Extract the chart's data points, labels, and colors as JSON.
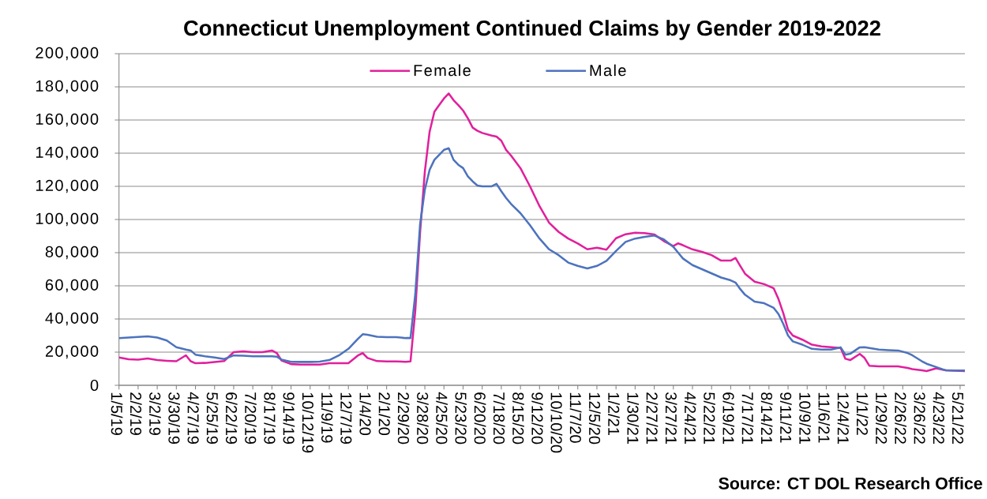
{
  "chart_data": {
    "type": "line",
    "title": "Connecticut Unemployment Continued Claims by Gender 2019-2022",
    "annotations": [
      "Source: CT DOL Research Office"
    ],
    "x": [
      "2019-01-05",
      "2019-01-19",
      "2019-02-02",
      "2019-02-16",
      "2019-03-02",
      "2019-03-16",
      "2019-03-30",
      "2019-04-13",
      "2019-04-20",
      "2019-04-27",
      "2019-05-11",
      "2019-05-25",
      "2019-06-08",
      "2019-06-22",
      "2019-07-06",
      "2019-07-20",
      "2019-08-03",
      "2019-08-17",
      "2019-08-24",
      "2019-08-31",
      "2019-09-14",
      "2019-09-28",
      "2019-10-12",
      "2019-10-26",
      "2019-11-09",
      "2019-11-23",
      "2019-12-07",
      "2019-12-21",
      "2019-12-28",
      "2020-01-04",
      "2020-01-18",
      "2020-02-01",
      "2020-02-15",
      "2020-02-29",
      "2020-03-07",
      "2020-03-14",
      "2020-03-21",
      "2020-03-28",
      "2020-04-04",
      "2020-04-11",
      "2020-04-18",
      "2020-04-25",
      "2020-05-02",
      "2020-05-09",
      "2020-05-16",
      "2020-05-23",
      "2020-05-30",
      "2020-06-06",
      "2020-06-13",
      "2020-06-20",
      "2020-07-04",
      "2020-07-11",
      "2020-07-18",
      "2020-07-25",
      "2020-08-01",
      "2020-08-15",
      "2020-08-29",
      "2020-09-12",
      "2020-09-26",
      "2020-10-10",
      "2020-10-24",
      "2020-11-07",
      "2020-11-21",
      "2020-12-05",
      "2020-12-19",
      "2021-01-02",
      "2021-01-16",
      "2021-01-30",
      "2021-02-13",
      "2021-02-27",
      "2021-03-13",
      "2021-03-27",
      "2021-04-03",
      "2021-04-10",
      "2021-04-24",
      "2021-05-08",
      "2021-05-22",
      "2021-06-05",
      "2021-06-19",
      "2021-06-26",
      "2021-07-03",
      "2021-07-10",
      "2021-07-24",
      "2021-08-07",
      "2021-08-21",
      "2021-08-28",
      "2021-09-04",
      "2021-09-11",
      "2021-09-18",
      "2021-10-02",
      "2021-10-16",
      "2021-10-30",
      "2021-11-13",
      "2021-11-27",
      "2021-12-04",
      "2021-12-11",
      "2021-12-25",
      "2022-01-01",
      "2022-01-08",
      "2022-01-22",
      "2022-02-05",
      "2022-02-19",
      "2022-03-05",
      "2022-03-12",
      "2022-03-26",
      "2022-04-02",
      "2022-04-16",
      "2022-04-30",
      "2022-05-14",
      "2022-05-28"
    ],
    "series": [
      {
        "name": "Female",
        "color": "#e0209c",
        "values": [
          16800,
          15700,
          15500,
          16200,
          15200,
          14800,
          14500,
          18100,
          14500,
          13300,
          13500,
          14000,
          14600,
          20000,
          20500,
          20000,
          20000,
          21000,
          19500,
          15000,
          12800,
          12500,
          12500,
          12500,
          13300,
          13300,
          13300,
          18000,
          19400,
          16500,
          14600,
          14400,
          14400,
          14200,
          14400,
          45000,
          92000,
          129000,
          153000,
          165000,
          169000,
          173000,
          176000,
          172000,
          169000,
          165700,
          161000,
          155400,
          153500,
          152200,
          150600,
          150000,
          147500,
          142000,
          138700,
          131000,
          120000,
          108000,
          98000,
          92500,
          88500,
          85500,
          82000,
          83000,
          81800,
          88700,
          91100,
          92000,
          91800,
          91000,
          87000,
          84000,
          85600,
          84500,
          82000,
          80500,
          78500,
          75200,
          75200,
          76800,
          72000,
          67300,
          62500,
          61000,
          58500,
          52000,
          43500,
          33500,
          30000,
          27500,
          24500,
          23500,
          23000,
          22500,
          16000,
          15200,
          18900,
          16500,
          11800,
          11400,
          11400,
          11400,
          10500,
          9800,
          9000,
          8600,
          10200,
          9000,
          8800,
          8600
        ]
      },
      {
        "name": "Male",
        "color": "#4d73be",
        "values": [
          28400,
          28800,
          29200,
          29500,
          28800,
          27000,
          23000,
          21500,
          21000,
          18500,
          17500,
          16800,
          15800,
          18000,
          17800,
          17500,
          17500,
          17500,
          17300,
          15500,
          14200,
          14100,
          14100,
          14300,
          15200,
          18000,
          22000,
          28000,
          30800,
          30500,
          29300,
          29000,
          29000,
          28500,
          28500,
          55000,
          97000,
          118000,
          130000,
          136000,
          139000,
          142000,
          143000,
          136000,
          133000,
          131000,
          126000,
          123000,
          120500,
          120000,
          120000,
          121500,
          117000,
          113000,
          109500,
          103800,
          96500,
          88500,
          82000,
          78500,
          74000,
          72000,
          70500,
          72000,
          75000,
          81000,
          86500,
          88500,
          89500,
          90300,
          88000,
          83500,
          80000,
          76500,
          72500,
          70000,
          67500,
          65000,
          63300,
          62000,
          58000,
          54600,
          50500,
          49500,
          46700,
          43000,
          37000,
          30000,
          26500,
          24500,
          22000,
          21500,
          21500,
          22900,
          18500,
          19000,
          22900,
          23000,
          22500,
          21500,
          21200,
          21000,
          19500,
          18100,
          14500,
          13000,
          11000,
          9000,
          8900,
          8900
        ]
      }
    ],
    "xlim": [
      "2019-01-05",
      "2022-05-28"
    ],
    "xticks": [
      {
        "value": "2019-01-05",
        "label": "1/5/19"
      },
      {
        "value": "2019-02-02",
        "label": "2/2/19"
      },
      {
        "value": "2019-03-02",
        "label": "3/2/19"
      },
      {
        "value": "2019-03-30",
        "label": "3/30/19"
      },
      {
        "value": "2019-04-27",
        "label": "4/27/19"
      },
      {
        "value": "2019-05-25",
        "label": "5/25/19"
      },
      {
        "value": "2019-06-22",
        "label": "6/22/19"
      },
      {
        "value": "2019-07-20",
        "label": "7/20/19"
      },
      {
        "value": "2019-08-17",
        "label": "8/17/19"
      },
      {
        "value": "2019-09-14",
        "label": "9/14/19"
      },
      {
        "value": "2019-10-12",
        "label": "10/12/19"
      },
      {
        "value": "2019-11-09",
        "label": "11/9/19"
      },
      {
        "value": "2019-12-07",
        "label": "12/7/19"
      },
      {
        "value": "2020-01-04",
        "label": "1/4/20"
      },
      {
        "value": "2020-02-01",
        "label": "2/1/20"
      },
      {
        "value": "2020-02-29",
        "label": "2/29/20"
      },
      {
        "value": "2020-03-28",
        "label": "3/28/20"
      },
      {
        "value": "2020-04-25",
        "label": "4/25/20"
      },
      {
        "value": "2020-05-23",
        "label": "5/23/20"
      },
      {
        "value": "2020-06-20",
        "label": "6/20/20"
      },
      {
        "value": "2020-07-18",
        "label": "7/18/20"
      },
      {
        "value": "2020-08-15",
        "label": "8/15/20"
      },
      {
        "value": "2020-09-12",
        "label": "9/12/20"
      },
      {
        "value": "2020-10-10",
        "label": "10/10/20"
      },
      {
        "value": "2020-11-07",
        "label": "11/7/20"
      },
      {
        "value": "2020-12-05",
        "label": "12/5/20"
      },
      {
        "value": "2021-01-02",
        "label": "1/2/21"
      },
      {
        "value": "2021-01-30",
        "label": "1/30/21"
      },
      {
        "value": "2021-02-27",
        "label": "2/27/21"
      },
      {
        "value": "2021-03-27",
        "label": "3/27/21"
      },
      {
        "value": "2021-04-24",
        "label": "4/24/21"
      },
      {
        "value": "2021-05-22",
        "label": "5/22/21"
      },
      {
        "value": "2021-06-19",
        "label": "6/19/21"
      },
      {
        "value": "2021-07-17",
        "label": "7/17/21"
      },
      {
        "value": "2021-08-14",
        "label": "8/14/21"
      },
      {
        "value": "2021-09-11",
        "label": "9/11/21"
      },
      {
        "value": "2021-10-09",
        "label": "10/9/21"
      },
      {
        "value": "2021-11-06",
        "label": "11/6/21"
      },
      {
        "value": "2021-12-04",
        "label": "12/4/21"
      },
      {
        "value": "2022-01-01",
        "label": "1/1/22"
      },
      {
        "value": "2022-01-29",
        "label": "1/29/22"
      },
      {
        "value": "2022-02-26",
        "label": "2/26/22"
      },
      {
        "value": "2022-03-26",
        "label": "3/26/22"
      },
      {
        "value": "2022-04-23",
        "label": "4/23/22"
      },
      {
        "value": "2022-05-21",
        "label": "5/21/22"
      }
    ],
    "ylim": [
      0,
      200000
    ],
    "yticks": [
      0,
      {
        "value": 20000,
        "label": "20,000"
      },
      {
        "value": 40000,
        "label": "40,000"
      },
      {
        "value": 60000,
        "label": "60,000"
      },
      {
        "value": 80000,
        "label": "80,000"
      },
      {
        "value": 100000,
        "label": "100,000"
      },
      {
        "value": 120000,
        "label": "120,000"
      },
      {
        "value": 140000,
        "label": "140,000"
      },
      {
        "value": 160000,
        "label": "160,000"
      },
      {
        "value": 180000,
        "label": "180,000"
      },
      {
        "value": 200000,
        "label": "200,000"
      }
    ],
    "grid": "y",
    "legend": "top"
  }
}
